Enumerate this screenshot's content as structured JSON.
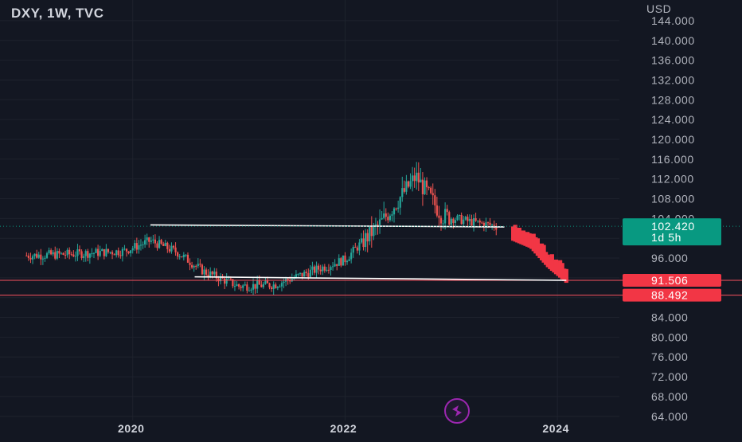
{
  "header": {
    "symbol_title": "DXY, 1W, TVC"
  },
  "price_axis": {
    "currency": "USD",
    "tick_labels": [
      "144.000",
      "140.000",
      "136.000",
      "132.000",
      "128.000",
      "124.000",
      "120.000",
      "116.000",
      "112.000",
      "108.000",
      "104.000",
      "96.000",
      "84.000",
      "80.000",
      "76.000",
      "72.000",
      "68.000",
      "64.000"
    ]
  },
  "time_axis": {
    "tick_labels": [
      "2020",
      "2022",
      "2024"
    ]
  },
  "price_tags": {
    "last_price": "102.420",
    "countdown": "1d 5h",
    "support_level": "91.506",
    "lower_level": "88.492"
  },
  "colors": {
    "background": "#131722",
    "up_candle": "#26a69a",
    "down_candle": "#ef5350",
    "projection": "#f23645",
    "level_line": "#f7525f",
    "drawn_lines": "#ffffff",
    "last_price_tag": "#089981",
    "grid": "#1e222d",
    "logo_accent": "#9c27b0"
  },
  "logo": {
    "icon": "lightning-bolt-icon"
  },
  "chart_data": {
    "type": "candlestick",
    "title": "DXY, 1W, TVC",
    "y_unit": "USD",
    "ylim": [
      63.8,
      145.6
    ],
    "xlim": [
      "2018-10",
      "2024-08"
    ],
    "grid": true,
    "last_price": 102.42,
    "horizontal_levels": [
      91.506,
      88.492
    ],
    "drawn_lines": [
      {
        "from": [
          "2020-03",
          102.7
        ],
        "to": [
          "2023-07",
          102.3
        ]
      },
      {
        "from": [
          "2020-08",
          92.2
        ],
        "to": [
          "2024-02",
          91.5
        ]
      }
    ],
    "series": [
      {
        "name": "",
        "kind": "weekly_candles",
        "anchors": [
          [
            "2019-01",
            96.5
          ],
          [
            "2019-06",
            96.8
          ],
          [
            "2019-12",
            97.4
          ],
          [
            "2020-03",
            99.5
          ],
          [
            "2020-06",
            97.2
          ],
          [
            "2020-09",
            93.3
          ],
          [
            "2021-01",
            90.3
          ],
          [
            "2021-05",
            90.6
          ],
          [
            "2021-09",
            93.2
          ],
          [
            "2022-01",
            95.7
          ],
          [
            "2022-05",
            103.0
          ],
          [
            "2022-09",
            112.5
          ],
          [
            "2022-12",
            104.5
          ],
          [
            "2023-03",
            103.4
          ],
          [
            "2023-06",
            102.5
          ]
        ]
      },
      {
        "name": "",
        "kind": "projection_bars",
        "anchors": [
          [
            "2023-08",
            100.5
          ],
          [
            "2023-10",
            99.0
          ],
          [
            "2023-12",
            95.0
          ],
          [
            "2024-02",
            92.0
          ]
        ]
      }
    ]
  }
}
